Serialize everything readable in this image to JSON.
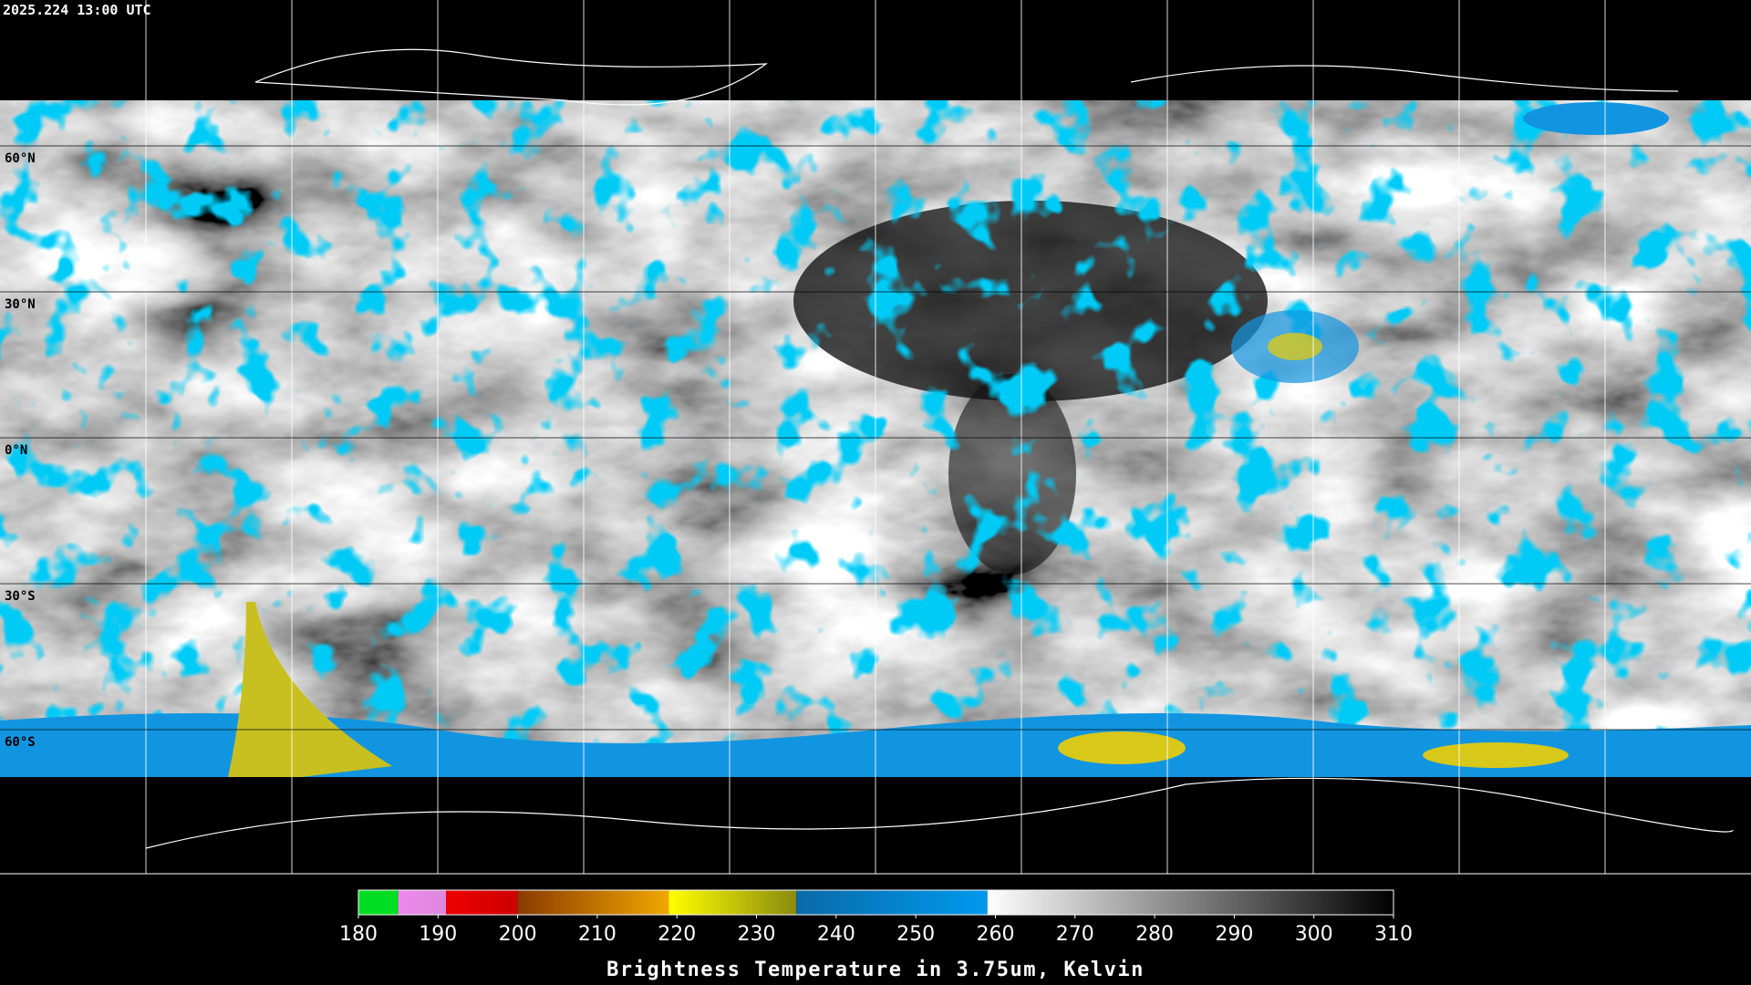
{
  "timestamp": "2025.224 13:00 UTC",
  "lat_labels": [
    "60°N",
    "30°N",
    "0°N",
    "30°S",
    "60°S"
  ],
  "colorbar": {
    "title": "Brightness Temperature in 3.75um, Kelvin",
    "lim": [
      180,
      310
    ],
    "ticks": [
      180,
      190,
      200,
      210,
      220,
      230,
      240,
      250,
      260,
      270,
      280,
      290,
      300,
      310
    ],
    "segments": [
      {
        "from": 180,
        "to": 185,
        "colors": [
          "#00dd22",
          "#00dd22"
        ]
      },
      {
        "from": 185,
        "to": 191,
        "colors": [
          "#ee88ee",
          "#dd88dd"
        ]
      },
      {
        "from": 191,
        "to": 200,
        "colors": [
          "#ee0000",
          "#cc0000"
        ]
      },
      {
        "from": 200,
        "to": 219,
        "colors": [
          "#8a3a00",
          "#f0a800"
        ]
      },
      {
        "from": 219,
        "to": 235,
        "colors": [
          "#ffff00",
          "#8a8a10"
        ]
      },
      {
        "from": 235,
        "to": 259,
        "colors": [
          "#0a6aa8",
          "#0099ee"
        ]
      },
      {
        "from": 259,
        "to": 310,
        "colors": [
          "#ffffff",
          "#000000"
        ]
      }
    ]
  }
}
